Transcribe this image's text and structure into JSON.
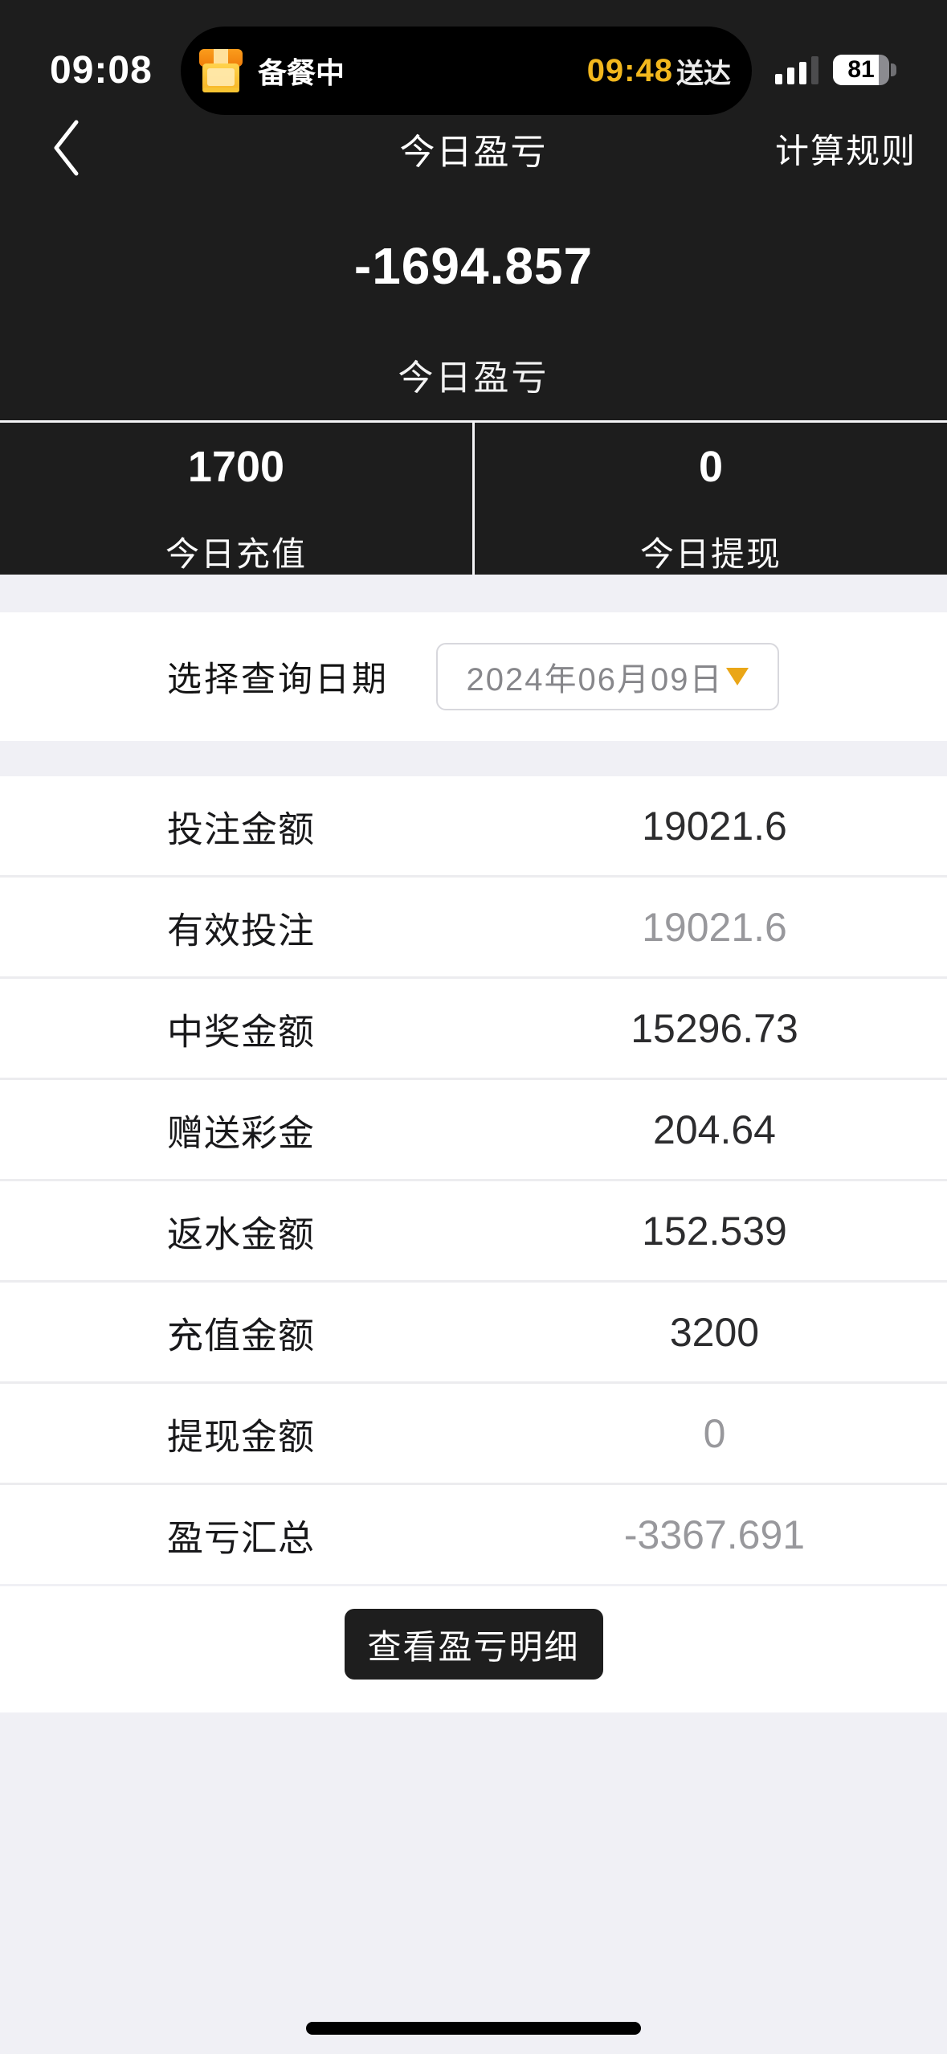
{
  "colors": {
    "header_bg": "#1d1d1d",
    "island_bg": "#000000",
    "accent_orange": "#f2b71d",
    "caret_orange": "#eaa617",
    "page_bg": "#f0f0f5",
    "muted_text": "#98989c",
    "button_bg": "#1e1e1e"
  },
  "status_bar": {
    "time": "09:08",
    "battery_percent": 81,
    "battery_label": "81",
    "signal_bars_filled": 3,
    "island": {
      "icon": "takeout-box-icon",
      "status_text": "备餐中",
      "eta_time": "09:48",
      "eta_suffix": "送达"
    }
  },
  "nav": {
    "back_icon": "chevron-left-icon",
    "title": "今日盈亏",
    "rules_link": "计算规则"
  },
  "summary": {
    "amount": "-1694.857",
    "label": "今日盈亏"
  },
  "today_stats": [
    {
      "value": "1700",
      "label": "今日充值"
    },
    {
      "value": "0",
      "label": "今日提现"
    }
  ],
  "date_filter": {
    "label": "选择查询日期",
    "value": "2024年06月09日",
    "dropdown_icon": "caret-down-icon"
  },
  "details": {
    "rows": [
      {
        "label": "投注金额",
        "value": "19021.6",
        "muted": false
      },
      {
        "label": "有效投注",
        "value": "19021.6",
        "muted": true
      },
      {
        "label": "中奖金额",
        "value": "15296.73",
        "muted": false
      },
      {
        "label": "赠送彩金",
        "value": "204.64",
        "muted": false
      },
      {
        "label": "返水金额",
        "value": "152.539",
        "muted": false
      },
      {
        "label": "充值金额",
        "value": "3200",
        "muted": false
      },
      {
        "label": "提现金额",
        "value": "0",
        "muted": true
      },
      {
        "label": "盈亏汇总",
        "value": "-3367.691",
        "muted": true
      }
    ]
  },
  "footer": {
    "detail_button": "查看盈亏明细"
  }
}
